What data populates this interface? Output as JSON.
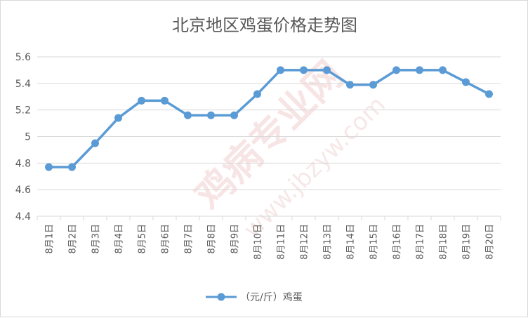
{
  "chart_data": {
    "type": "line",
    "title": "北京地区鸡蛋价格走势图",
    "categories": [
      "8月1日",
      "8月2日",
      "8月3日",
      "8月4日",
      "8月5日",
      "8月6日",
      "8月7日",
      "8月8日",
      "8月9日",
      "8月10日",
      "8月11日",
      "8月12日",
      "8月13日",
      "8月14日",
      "8月15日",
      "8月16日",
      "8月17日",
      "8月18日",
      "8月19日",
      "8月20日"
    ],
    "series": [
      {
        "name": "（元/斤）鸡蛋",
        "values": [
          4.77,
          4.77,
          4.95,
          5.14,
          5.27,
          5.27,
          5.16,
          5.16,
          5.16,
          5.32,
          5.5,
          5.5,
          5.5,
          5.39,
          5.39,
          5.5,
          5.5,
          5.5,
          5.41,
          5.32
        ]
      }
    ],
    "ylim": [
      4.4,
      5.6
    ],
    "yticks": [
      "4.4",
      "4.6",
      "4.8",
      "5",
      "5.2",
      "5.4",
      "5.6"
    ],
    "xlabel": "",
    "ylabel": "",
    "grid": true,
    "legend_position": "bottom",
    "line_color": "#5b9bd5"
  },
  "watermark": {
    "text": "鸡病专业网",
    "url": "www.jbzyw.com"
  }
}
